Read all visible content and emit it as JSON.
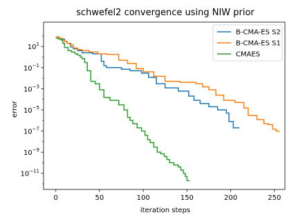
{
  "chart_data": {
    "type": "line",
    "title": "schwefel2 convergence using NIW prior",
    "xlabel": "iteration steps",
    "ylabel": "error",
    "y_scale": "log",
    "xlim": [
      -14,
      262
    ],
    "ylim": [
      3e-13,
      2000
    ],
    "x_ticks": [
      0,
      50,
      100,
      150,
      200,
      250
    ],
    "y_ticks": [
      {
        "value": 10,
        "base": "10",
        "exp": "1"
      },
      {
        "value": 0.1,
        "base": "10",
        "exp": "−1"
      },
      {
        "value": 0.001,
        "base": "10",
        "exp": "−3"
      },
      {
        "value": 1e-05,
        "base": "10",
        "exp": "−5"
      },
      {
        "value": 1e-07,
        "base": "10",
        "exp": "−7"
      },
      {
        "value": 1e-09,
        "base": "10",
        "exp": "−9"
      },
      {
        "value": 1e-11,
        "base": "10",
        "exp": "−11"
      }
    ],
    "grid": false,
    "legend_position": "top-right",
    "series": [
      {
        "name": "B-CMA-ES S2",
        "color": "#1f77b4",
        "x": [
          0,
          4,
          7,
          10,
          13,
          17,
          20,
          25,
          30,
          42,
          52,
          55,
          58,
          75,
          85,
          98,
          106,
          115,
          125,
          140,
          152,
          158,
          165,
          175,
          185,
          195,
          198,
          203,
          210
        ],
        "y": [
          80,
          60,
          50,
          30,
          20,
          9,
          6,
          4,
          2.5,
          2,
          0.4,
          0.15,
          0.1,
          0.07,
          0.05,
          0.03,
          0.012,
          0.003,
          0.0012,
          0.0006,
          0.0002,
          8e-05,
          4e-05,
          2e-05,
          1e-05,
          5e-06,
          8e-07,
          2e-07,
          2e-07
        ]
      },
      {
        "name": "B-CMA-ES S1",
        "color": "#ff7f0e",
        "x": [
          0,
          4,
          7,
          10,
          13,
          16,
          20,
          25,
          30,
          38,
          48,
          58,
          72,
          82,
          92,
          100,
          112,
          125,
          142,
          160,
          168,
          175,
          183,
          192,
          205,
          215,
          220,
          230,
          238,
          243,
          248,
          252,
          255
        ],
        "y": [
          80,
          60,
          40,
          30,
          20,
          15,
          7,
          5,
          4,
          3,
          2,
          1.8,
          0.5,
          0.25,
          0.08,
          0.04,
          0.015,
          0.005,
          0.004,
          0.003,
          0.0015,
          0.0008,
          0.00025,
          8e-05,
          5e-05,
          1.5e-05,
          3e-06,
          1.2e-06,
          5e-07,
          4e-07,
          1.5e-07,
          1e-07,
          8e-08
        ]
      },
      {
        "name": "CMAES",
        "color": "#2ca02c",
        "x": [
          0,
          3,
          6,
          8,
          10,
          14,
          18,
          22,
          25,
          28,
          30,
          33,
          36,
          40,
          45,
          50,
          55,
          62,
          72,
          78,
          82,
          85,
          88,
          93,
          98,
          102,
          105,
          108,
          112,
          116,
          120,
          124,
          127,
          130,
          135,
          140,
          143,
          146,
          148,
          150,
          153
        ],
        "y": [
          60,
          50,
          40,
          20,
          8,
          4,
          3,
          2,
          1.5,
          1,
          0.7,
          0.3,
          0.05,
          0.005,
          0.003,
          0.0008,
          0.00015,
          8e-05,
          3e-05,
          1e-05,
          2e-06,
          1e-06,
          5e-07,
          2e-07,
          1e-07,
          4e-08,
          1.5e-08,
          8e-09,
          3e-09,
          1e-09,
          7e-10,
          4e-10,
          2e-10,
          1e-10,
          6e-11,
          4e-11,
          2e-11,
          1e-11,
          5e-12,
          2e-12,
          2e-12
        ]
      }
    ]
  }
}
